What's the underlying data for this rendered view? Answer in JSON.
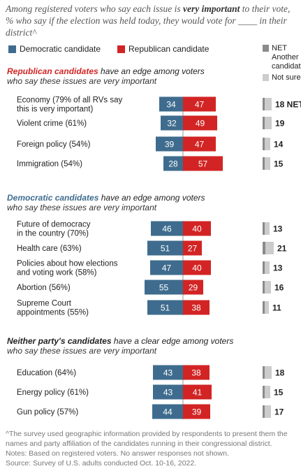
{
  "subtitle": {
    "pre": "Among registered voters who say each issue is ",
    "emph": "very important",
    "post": " to their vote, % who say if the election was held today, they would vote for ____ in their district^"
  },
  "legend": {
    "dem": "Democratic candidate",
    "rep": "Republican candidate",
    "net_label": "NET",
    "net_desc": "Another candidate",
    "not_sure": "Not sure"
  },
  "colors": {
    "dem": "#3f6c8e",
    "rep": "#d22424",
    "net_dark": "#8a8a8a",
    "net_light": "#cccccc"
  },
  "sections": [
    {
      "highlight": "Republican candidates",
      "highlight_color": "#d22424",
      "rest": " have an edge among voters",
      "sub": "who say these issues are very important"
    },
    {
      "highlight": "Democratic candidates",
      "highlight_color": "#3f6c8e",
      "rest": " have an edge among voters",
      "sub": "who say these issues are very important"
    },
    {
      "highlight": "Neither party's candidates",
      "highlight_color": "#222222",
      "rest": " have a clear edge among voters",
      "sub": "who say these issues are very important"
    }
  ],
  "chart_data": {
    "type": "bar",
    "categories": [
      [
        "Economy (79% of all RVs say",
        "this is very important)"
      ],
      [
        "Violent crime (61%)"
      ],
      [
        "Foreign policy (54%)"
      ],
      [
        "Immigration (54%)"
      ],
      [
        "Future of democracy",
        "in the country (70%)"
      ],
      [
        "Health care (63%)"
      ],
      [
        "Policies about how elections",
        "and voting work (58%)"
      ],
      [
        "Abortion (56%)"
      ],
      [
        "Supreme Court",
        "appointments (55%)"
      ],
      [
        "Education (64%)"
      ],
      [
        "Energy policy (61%)"
      ],
      [
        "Gun policy (57%)"
      ]
    ],
    "section_index": [
      0,
      0,
      0,
      0,
      1,
      1,
      1,
      1,
      1,
      2,
      2,
      2
    ],
    "series": [
      {
        "name": "Democratic candidate",
        "values": [
          34,
          32,
          39,
          28,
          46,
          51,
          47,
          55,
          51,
          43,
          43,
          44
        ]
      },
      {
        "name": "Republican candidate",
        "values": [
          47,
          49,
          47,
          57,
          40,
          27,
          40,
          29,
          38,
          38,
          41,
          39
        ]
      }
    ],
    "net_other": [
      18,
      19,
      14,
      15,
      13,
      21,
      13,
      16,
      11,
      18,
      15,
      17
    ],
    "net_first_suffix": " NET"
  },
  "notes": [
    "^The survey used geographic information provided by respondents to present them the names and party affiliation of the candidates running in their congressional district.",
    "Notes: Based on registered voters. No answer responses not shown.",
    "Source: Survey of U.S. adults conducted Oct. 10-16, 2022."
  ]
}
